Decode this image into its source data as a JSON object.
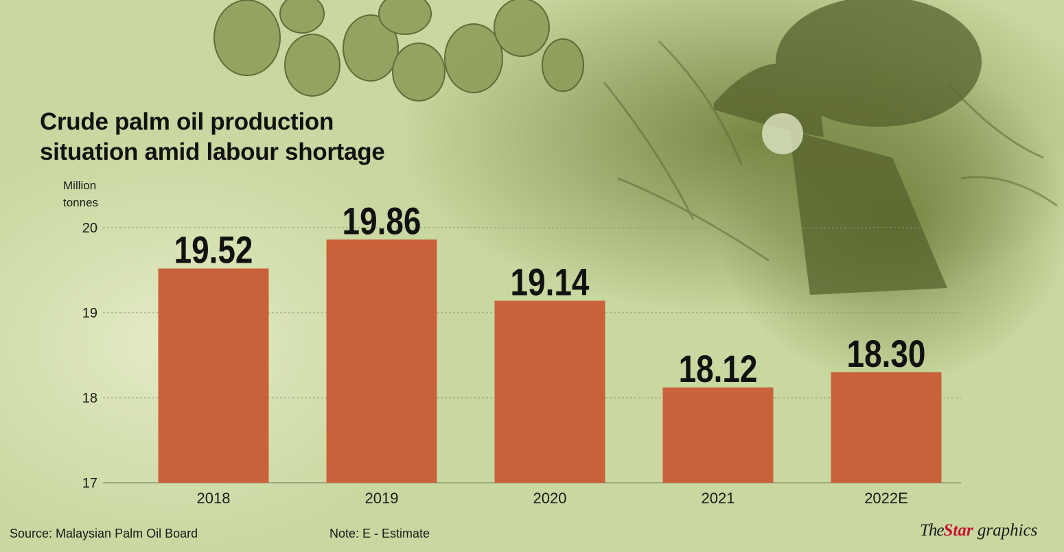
{
  "page": {
    "title_lines": [
      "Crude palm oil production",
      "situation amid labour shortage"
    ],
    "unit_lines": [
      "Million",
      "tonnes"
    ],
    "source": "Source: Malaysian Palm Oil Board",
    "note": "Note: E - Estimate",
    "brand": {
      "the": "The",
      "star": "Star",
      "graphics": " graphics"
    }
  },
  "colors": {
    "background": "#c6d49a",
    "bar": "#c9623a",
    "gridline": "#8d9873",
    "text": "#111111",
    "brand_red": "#c8102e"
  },
  "chart_data": {
    "type": "bar",
    "title": "Crude palm oil production situation amid labour shortage",
    "ylabel": "Million tonnes",
    "xlabel": "",
    "categories": [
      "2018",
      "2019",
      "2020",
      "2021",
      "2022E"
    ],
    "values": [
      19.52,
      19.86,
      19.14,
      18.12,
      18.3
    ],
    "value_labels": [
      "19.52",
      "19.86",
      "19.14",
      "18.12",
      "18.30"
    ],
    "ylim": [
      17,
      20
    ],
    "yticks": [
      17,
      18,
      19,
      20
    ],
    "grid": true,
    "legend": "none"
  }
}
